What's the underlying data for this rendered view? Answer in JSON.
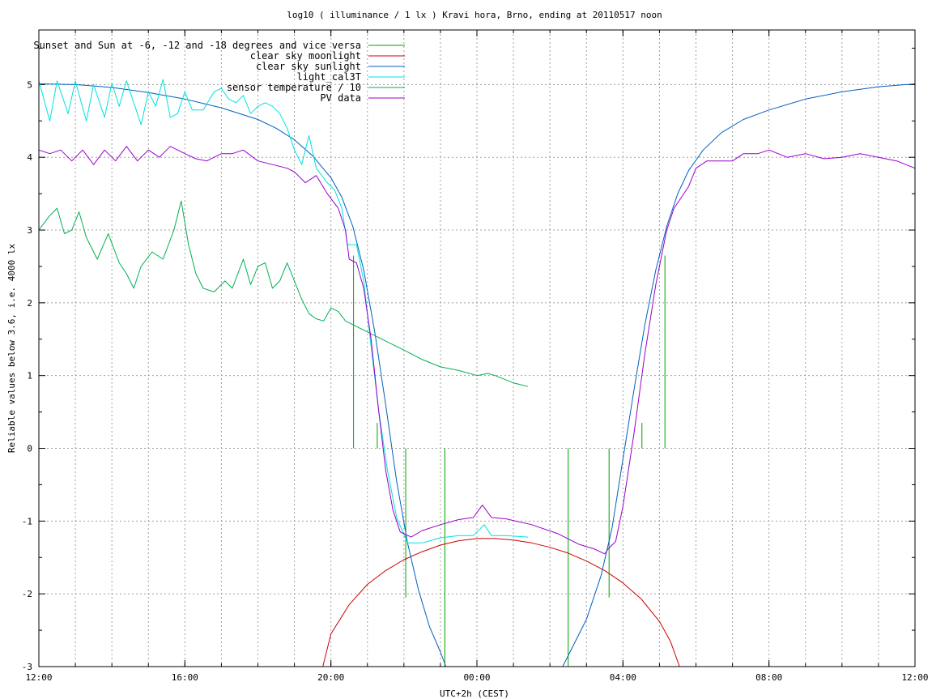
{
  "chart_data": {
    "type": "line",
    "title": "log10 ( illuminance / 1 lx ) Kravi hora, Brno, ending at 20110517 noon",
    "xlabel": "UTC+2h (CEST)",
    "ylabel": "Reliable values below 3.6, i.e. 4000 lx",
    "xlim": [
      0,
      24
    ],
    "ylim": [
      -3,
      5.75
    ],
    "x_ticks": [
      {
        "x": 0,
        "label": "12:00"
      },
      {
        "x": 4,
        "label": "16:00"
      },
      {
        "x": 8,
        "label": "20:00"
      },
      {
        "x": 12,
        "label": "00:00"
      },
      {
        "x": 16,
        "label": "04:00"
      },
      {
        "x": 20,
        "label": "08:00"
      },
      {
        "x": 24,
        "label": "12:00"
      }
    ],
    "y_ticks": [
      {
        "y": 5,
        "label": "5"
      },
      {
        "y": 4,
        "label": "4"
      },
      {
        "y": 3,
        "label": "3"
      },
      {
        "y": 2,
        "label": "2"
      },
      {
        "y": 1,
        "label": "1"
      },
      {
        "y": 0,
        "label": "0"
      },
      {
        "y": -1,
        "label": "-1"
      },
      {
        "y": -2,
        "label": "-2"
      },
      {
        "y": -3,
        "label": "-3"
      }
    ],
    "legend_position": "top-left",
    "grid": true,
    "series": [
      {
        "name": "Sunset and Sun at -6, -12 and -18 degrees and vice versa",
        "color": "#00a000",
        "kind": "impulses",
        "marks": [
          {
            "x": 8.62,
            "y": 2.65
          },
          {
            "x": 9.27,
            "y": 0.35
          },
          {
            "x": 10.05,
            "y": -2.05
          },
          {
            "x": 11.12,
            "y": -3
          },
          {
            "x": 14.5,
            "y": -3
          },
          {
            "x": 15.62,
            "y": -2.05
          },
          {
            "x": 16.52,
            "y": 0.35
          },
          {
            "x": 17.15,
            "y": 2.65
          }
        ]
      },
      {
        "name": "clear sky moonlight",
        "color": "#cc0000",
        "points": [
          [
            7.78,
            -3
          ],
          [
            8.0,
            -2.55
          ],
          [
            8.5,
            -2.15
          ],
          [
            9.0,
            -1.87
          ],
          [
            9.5,
            -1.68
          ],
          [
            10.0,
            -1.53
          ],
          [
            10.5,
            -1.42
          ],
          [
            11.0,
            -1.33
          ],
          [
            11.5,
            -1.27
          ],
          [
            12.0,
            -1.24
          ],
          [
            12.5,
            -1.24
          ],
          [
            13.0,
            -1.26
          ],
          [
            13.5,
            -1.3
          ],
          [
            14.0,
            -1.36
          ],
          [
            14.5,
            -1.44
          ],
          [
            15.0,
            -1.55
          ],
          [
            15.5,
            -1.68
          ],
          [
            16.0,
            -1.85
          ],
          [
            16.5,
            -2.07
          ],
          [
            17.0,
            -2.38
          ],
          [
            17.3,
            -2.65
          ],
          [
            17.55,
            -3
          ]
        ]
      },
      {
        "name": "clear sky sunlight",
        "color": "#0060c0",
        "points": [
          [
            0,
            5.01
          ],
          [
            1,
            5.0
          ],
          [
            2,
            4.96
          ],
          [
            3,
            4.89
          ],
          [
            4,
            4.8
          ],
          [
            5,
            4.68
          ],
          [
            6,
            4.52
          ],
          [
            6.5,
            4.4
          ],
          [
            7,
            4.24
          ],
          [
            7.5,
            4.02
          ],
          [
            8,
            3.72
          ],
          [
            8.3,
            3.45
          ],
          [
            8.6,
            3.05
          ],
          [
            8.9,
            2.45
          ],
          [
            9.2,
            1.6
          ],
          [
            9.5,
            0.6
          ],
          [
            9.8,
            -0.45
          ],
          [
            10.1,
            -1.3
          ],
          [
            10.4,
            -1.95
          ],
          [
            10.7,
            -2.45
          ],
          [
            11.0,
            -2.8
          ],
          [
            11.15,
            -3
          ],
          [
            14.35,
            -3
          ],
          [
            14.6,
            -2.75
          ],
          [
            15.0,
            -2.35
          ],
          [
            15.4,
            -1.75
          ],
          [
            15.7,
            -1.1
          ],
          [
            16.0,
            -0.15
          ],
          [
            16.3,
            0.8
          ],
          [
            16.6,
            1.7
          ],
          [
            16.9,
            2.45
          ],
          [
            17.2,
            3.05
          ],
          [
            17.5,
            3.5
          ],
          [
            17.8,
            3.82
          ],
          [
            18.2,
            4.1
          ],
          [
            18.7,
            4.34
          ],
          [
            19.3,
            4.52
          ],
          [
            20,
            4.65
          ],
          [
            21,
            4.8
          ],
          [
            22,
            4.9
          ],
          [
            23,
            4.97
          ],
          [
            24,
            5.01
          ]
        ]
      },
      {
        "name": "light_cal3T",
        "color": "#00e0e0",
        "points": [
          [
            0,
            5.05
          ],
          [
            0.3,
            4.5
          ],
          [
            0.5,
            5.05
          ],
          [
            0.8,
            4.6
          ],
          [
            1.0,
            5.05
          ],
          [
            1.3,
            4.5
          ],
          [
            1.5,
            5.0
          ],
          [
            1.8,
            4.55
          ],
          [
            2.0,
            5.02
          ],
          [
            2.2,
            4.7
          ],
          [
            2.4,
            5.05
          ],
          [
            2.8,
            4.45
          ],
          [
            3.0,
            4.9
          ],
          [
            3.2,
            4.7
          ],
          [
            3.4,
            5.07
          ],
          [
            3.6,
            4.55
          ],
          [
            3.8,
            4.6
          ],
          [
            4.0,
            4.9
          ],
          [
            4.2,
            4.65
          ],
          [
            4.5,
            4.65
          ],
          [
            4.8,
            4.9
          ],
          [
            5.0,
            4.95
          ],
          [
            5.2,
            4.8
          ],
          [
            5.4,
            4.75
          ],
          [
            5.6,
            4.85
          ],
          [
            5.8,
            4.6
          ],
          [
            6.0,
            4.7
          ],
          [
            6.2,
            4.75
          ],
          [
            6.4,
            4.7
          ],
          [
            6.6,
            4.6
          ],
          [
            6.8,
            4.4
          ],
          [
            7.0,
            4.1
          ],
          [
            7.2,
            3.9
          ],
          [
            7.4,
            4.3
          ],
          [
            7.6,
            3.85
          ],
          [
            7.9,
            3.65
          ],
          [
            8.1,
            3.55
          ],
          [
            8.3,
            3.3
          ],
          [
            8.45,
            2.8
          ],
          [
            8.7,
            2.8
          ],
          [
            8.9,
            2.3
          ],
          [
            9.1,
            1.4
          ],
          [
            9.3,
            0.55
          ],
          [
            9.55,
            -0.3
          ],
          [
            9.8,
            -0.95
          ],
          [
            10.1,
            -1.3
          ],
          [
            10.5,
            -1.3
          ],
          [
            11.0,
            -1.23
          ],
          [
            11.5,
            -1.2
          ],
          [
            11.9,
            -1.2
          ],
          [
            12.2,
            -1.05
          ],
          [
            12.4,
            -1.2
          ],
          [
            12.8,
            -1.2
          ],
          [
            13.4,
            -1.22
          ]
        ]
      },
      {
        "name": "sensor temperature / 10",
        "color": "#00b050",
        "points": [
          [
            0,
            3.0
          ],
          [
            0.3,
            3.2
          ],
          [
            0.5,
            3.3
          ],
          [
            0.7,
            2.95
          ],
          [
            0.9,
            3.0
          ],
          [
            1.1,
            3.25
          ],
          [
            1.3,
            2.9
          ],
          [
            1.6,
            2.6
          ],
          [
            1.9,
            2.95
          ],
          [
            2.2,
            2.55
          ],
          [
            2.4,
            2.4
          ],
          [
            2.6,
            2.2
          ],
          [
            2.8,
            2.5
          ],
          [
            3.1,
            2.7
          ],
          [
            3.4,
            2.6
          ],
          [
            3.7,
            3.0
          ],
          [
            3.9,
            3.4
          ],
          [
            4.1,
            2.8
          ],
          [
            4.3,
            2.4
          ],
          [
            4.5,
            2.2
          ],
          [
            4.8,
            2.15
          ],
          [
            5.1,
            2.3
          ],
          [
            5.3,
            2.2
          ],
          [
            5.6,
            2.6
          ],
          [
            5.8,
            2.25
          ],
          [
            6.0,
            2.5
          ],
          [
            6.2,
            2.55
          ],
          [
            6.4,
            2.2
          ],
          [
            6.6,
            2.3
          ],
          [
            6.8,
            2.55
          ],
          [
            7.0,
            2.3
          ],
          [
            7.2,
            2.05
          ],
          [
            7.4,
            1.85
          ],
          [
            7.6,
            1.78
          ],
          [
            7.8,
            1.75
          ],
          [
            8.0,
            1.93
          ],
          [
            8.2,
            1.88
          ],
          [
            8.4,
            1.75
          ],
          [
            8.8,
            1.65
          ],
          [
            9.2,
            1.55
          ],
          [
            9.6,
            1.45
          ],
          [
            10.0,
            1.35
          ],
          [
            10.5,
            1.22
          ],
          [
            11.0,
            1.12
          ],
          [
            11.5,
            1.07
          ],
          [
            12.0,
            1.0
          ],
          [
            12.3,
            1.03
          ],
          [
            12.5,
            1.0
          ],
          [
            13.0,
            0.9
          ],
          [
            13.4,
            0.85
          ]
        ]
      },
      {
        "name": "PV data",
        "color": "#9900cc",
        "points": [
          [
            0,
            4.1
          ],
          [
            0.3,
            4.05
          ],
          [
            0.6,
            4.1
          ],
          [
            0.9,
            3.95
          ],
          [
            1.2,
            4.1
          ],
          [
            1.5,
            3.9
          ],
          [
            1.8,
            4.1
          ],
          [
            2.1,
            3.95
          ],
          [
            2.4,
            4.15
          ],
          [
            2.7,
            3.95
          ],
          [
            3.0,
            4.1
          ],
          [
            3.3,
            4.0
          ],
          [
            3.6,
            4.15
          ],
          [
            4.0,
            4.05
          ],
          [
            4.3,
            3.98
          ],
          [
            4.6,
            3.95
          ],
          [
            5.0,
            4.05
          ],
          [
            5.3,
            4.05
          ],
          [
            5.6,
            4.1
          ],
          [
            6.0,
            3.95
          ],
          [
            6.4,
            3.9
          ],
          [
            6.8,
            3.85
          ],
          [
            7.0,
            3.8
          ],
          [
            7.3,
            3.65
          ],
          [
            7.6,
            3.75
          ],
          [
            7.9,
            3.5
          ],
          [
            8.2,
            3.3
          ],
          [
            8.4,
            3.0
          ],
          [
            8.5,
            2.6
          ],
          [
            8.7,
            2.55
          ],
          [
            8.9,
            2.2
          ],
          [
            9.1,
            1.5
          ],
          [
            9.3,
            0.55
          ],
          [
            9.5,
            -0.3
          ],
          [
            9.7,
            -0.85
          ],
          [
            9.9,
            -1.15
          ],
          [
            10.2,
            -1.22
          ],
          [
            10.5,
            -1.13
          ],
          [
            11.0,
            -1.05
          ],
          [
            11.5,
            -0.98
          ],
          [
            11.9,
            -0.95
          ],
          [
            12.15,
            -0.78
          ],
          [
            12.4,
            -0.95
          ],
          [
            12.8,
            -0.97
          ],
          [
            13.5,
            -1.05
          ],
          [
            14.2,
            -1.17
          ],
          [
            14.8,
            -1.32
          ],
          [
            15.2,
            -1.38
          ],
          [
            15.5,
            -1.45
          ],
          [
            15.6,
            -1.38
          ],
          [
            15.8,
            -1.28
          ],
          [
            16.0,
            -0.8
          ],
          [
            16.3,
            0.2
          ],
          [
            16.6,
            1.3
          ],
          [
            16.9,
            2.25
          ],
          [
            17.2,
            3.0
          ],
          [
            17.4,
            3.3
          ],
          [
            17.6,
            3.45
          ],
          [
            17.8,
            3.6
          ],
          [
            18.0,
            3.85
          ],
          [
            18.3,
            3.95
          ],
          [
            18.7,
            3.95
          ],
          [
            19.0,
            3.95
          ],
          [
            19.3,
            4.05
          ],
          [
            19.7,
            4.05
          ],
          [
            20.0,
            4.1
          ],
          [
            20.5,
            4.0
          ],
          [
            21.0,
            4.05
          ],
          [
            21.5,
            3.98
          ],
          [
            22.0,
            4.0
          ],
          [
            22.5,
            4.05
          ],
          [
            23.0,
            4.0
          ],
          [
            23.5,
            3.95
          ],
          [
            24.0,
            3.85
          ]
        ]
      }
    ]
  }
}
